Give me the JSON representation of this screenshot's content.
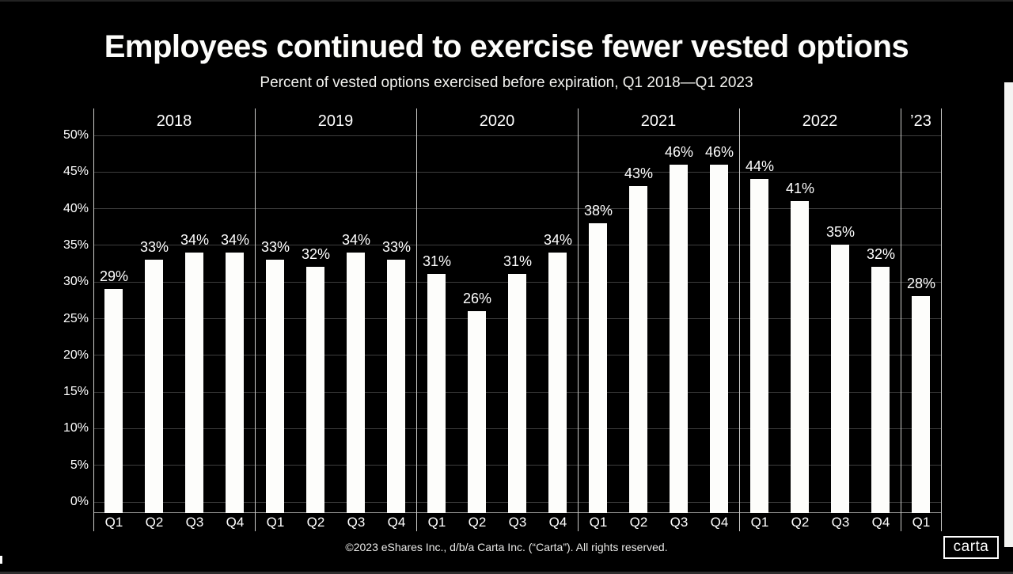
{
  "header": {
    "title": "Employees continued to exercise fewer vested options",
    "subtitle": "Percent of vested options exercised before expiration, Q1 2018—Q1 2023"
  },
  "chart_data": {
    "type": "bar",
    "title": "Employees continued to exercise fewer vested options",
    "subtitle": "Percent of vested options exercised before expiration, Q1 2018—Q1 2023",
    "xlabel": "",
    "ylabel": "",
    "ylim": [
      0,
      50
    ],
    "ytick_step": 5,
    "ytick_labels": [
      "0%",
      "5%",
      "10%",
      "15%",
      "20%",
      "25%",
      "30%",
      "35%",
      "40%",
      "45%",
      "50%"
    ],
    "grid": "horizontal",
    "legend": "none",
    "bar_color": "#fdfdfb",
    "background": "#000000",
    "groups": [
      {
        "label": "2018",
        "quarters": [
          "Q1",
          "Q2",
          "Q3",
          "Q4"
        ],
        "values": [
          29,
          33,
          34,
          34
        ],
        "value_labels": [
          "29%",
          "33%",
          "34%",
          "34%"
        ]
      },
      {
        "label": "2019",
        "quarters": [
          "Q1",
          "Q2",
          "Q3",
          "Q4"
        ],
        "values": [
          33,
          32,
          34,
          33
        ],
        "value_labels": [
          "33%",
          "32%",
          "34%",
          "33%"
        ]
      },
      {
        "label": "2020",
        "quarters": [
          "Q1",
          "Q2",
          "Q3",
          "Q4"
        ],
        "values": [
          31,
          26,
          31,
          34
        ],
        "value_labels": [
          "31%",
          "26%",
          "31%",
          "34%"
        ]
      },
      {
        "label": "2021",
        "quarters": [
          "Q1",
          "Q2",
          "Q3",
          "Q4"
        ],
        "values": [
          38,
          43,
          46,
          46
        ],
        "value_labels": [
          "38%",
          "43%",
          "46%",
          "46%"
        ]
      },
      {
        "label": "2022",
        "quarters": [
          "Q1",
          "Q2",
          "Q3",
          "Q4"
        ],
        "values": [
          44,
          41,
          35,
          32
        ],
        "value_labels": [
          "44%",
          "41%",
          "35%",
          "32%"
        ]
      },
      {
        "label": "’23",
        "quarters": [
          "Q1"
        ],
        "values": [
          28
        ],
        "value_labels": [
          "28%"
        ]
      }
    ]
  },
  "footer": {
    "copyright": "©2023 eShares Inc., d/b/a Carta Inc. (“Carta”). All rights reserved.",
    "logo_text": "carta"
  },
  "colors": {
    "background": "#000000",
    "bar": "#fdfdfb",
    "gridline": "#3e3e3e",
    "divider": "#cbcbc9",
    "axis_line": "#969694",
    "text": "#ffffff"
  }
}
